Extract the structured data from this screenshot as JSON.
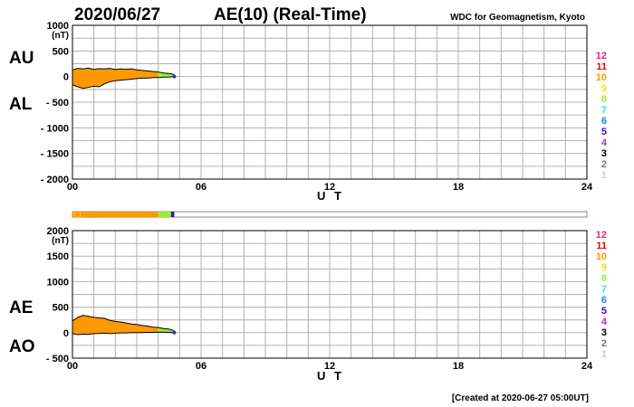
{
  "header": {
    "date": "2020/06/27",
    "title": "AE(10) (Real-Time)",
    "org": "WDC for Geomagnetism, Kyoto"
  },
  "footer": {
    "created": "[Created at 2020-06-27 05:00UT]"
  },
  "colors": {
    "fill": "#ff9900",
    "fill_partial": "#99ee33",
    "fill_low": "#3333cc",
    "grid": "#b0b0b0",
    "frame": "#000000"
  },
  "legend": {
    "items": [
      {
        "label": "12",
        "color": "#ee2288"
      },
      {
        "label": "11",
        "color": "#dd1100"
      },
      {
        "label": "10",
        "color": "#ff9900"
      },
      {
        "label": "9",
        "color": "#ffdd00"
      },
      {
        "label": "8",
        "color": "#99ee33"
      },
      {
        "label": "7",
        "color": "#33ddee"
      },
      {
        "label": "6",
        "color": "#1188ee"
      },
      {
        "label": "5",
        "color": "#3311bb"
      },
      {
        "label": "4",
        "color": "#cc22cc"
      },
      {
        "label": "3",
        "color": "#000000"
      },
      {
        "label": "2",
        "color": "#777777"
      },
      {
        "label": "1",
        "color": "#cccccc"
      }
    ]
  },
  "station_bar": {
    "segments": [
      {
        "from": 0.0,
        "to": 0.08,
        "count": "10"
      },
      {
        "from": 0.08,
        "to": 0.1,
        "count": "9"
      },
      {
        "from": 0.1,
        "to": 0.35,
        "count": "10"
      },
      {
        "from": 0.35,
        "to": 0.38,
        "count": "9"
      },
      {
        "from": 0.38,
        "to": 4.0,
        "count": "10"
      },
      {
        "from": 4.0,
        "to": 4.6,
        "count": "8"
      },
      {
        "from": 4.6,
        "to": 4.75,
        "count": "5"
      }
    ]
  },
  "chart_data": [
    {
      "type": "area",
      "name": "AU-AL",
      "labels_left": [
        "AU",
        "AL"
      ],
      "ylabel": "(nT)",
      "xlabel": "U T",
      "xlim": [
        0,
        24
      ],
      "ylim": [
        -2000,
        1000
      ],
      "yticks": [
        1000,
        500,
        0,
        -500,
        -1000,
        -1500,
        -2000
      ],
      "ytick_labels": [
        "1000",
        "500",
        "0",
        "- 500",
        "- 1000",
        "- 1500",
        "- 2000"
      ],
      "xticks": [
        0,
        6,
        12,
        18,
        24
      ],
      "xtick_labels": [
        "00",
        "06",
        "12",
        "18",
        "24"
      ],
      "partial_from": 4.0,
      "x": [
        0.0,
        0.25,
        0.5,
        0.75,
        1.0,
        1.25,
        1.5,
        1.75,
        2.0,
        2.25,
        2.5,
        2.75,
        3.0,
        3.25,
        3.5,
        3.75,
        4.0,
        4.25,
        4.5,
        4.75
      ],
      "upper": [
        130,
        160,
        150,
        165,
        140,
        155,
        150,
        160,
        140,
        150,
        145,
        150,
        130,
        120,
        110,
        100,
        90,
        70,
        60,
        40
      ],
      "lower": [
        -160,
        -200,
        -230,
        -210,
        -190,
        -200,
        -140,
        -100,
        -80,
        -70,
        -60,
        -50,
        -40,
        -30,
        -30,
        -20,
        -20,
        -10,
        -10,
        0
      ]
    },
    {
      "type": "area",
      "name": "AE-AO",
      "labels_left": [
        "AE",
        "AO"
      ],
      "ylabel": "(nT)",
      "xlabel": "U T",
      "xlim": [
        0,
        24
      ],
      "ylim": [
        -500,
        2000
      ],
      "yticks": [
        2000,
        1500,
        1000,
        500,
        0,
        -500
      ],
      "ytick_labels": [
        "2000",
        "1500",
        "1000",
        "500",
        "0",
        "- 500"
      ],
      "xticks": [
        0,
        6,
        12,
        18,
        24
      ],
      "xtick_labels": [
        "00",
        "06",
        "12",
        "18",
        "24"
      ],
      "partial_from": 4.0,
      "x": [
        0.0,
        0.25,
        0.5,
        0.75,
        1.0,
        1.25,
        1.5,
        1.75,
        2.0,
        2.25,
        2.5,
        2.75,
        3.0,
        3.25,
        3.5,
        3.75,
        4.0,
        4.25,
        4.5,
        4.75
      ],
      "upper": [
        230,
        300,
        340,
        320,
        300,
        290,
        280,
        240,
        220,
        210,
        190,
        170,
        160,
        140,
        130,
        110,
        100,
        80,
        70,
        40
      ],
      "lower": [
        -20,
        -40,
        -30,
        -35,
        -20,
        -15,
        -10,
        -20,
        -10,
        -5,
        -5,
        0,
        0,
        0,
        5,
        5,
        10,
        10,
        5,
        0
      ]
    }
  ]
}
